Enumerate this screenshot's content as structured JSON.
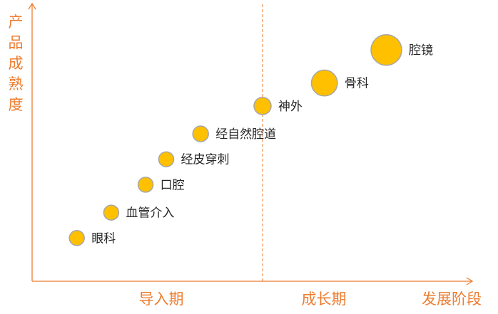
{
  "chart_data": {
    "type": "scatter",
    "title": "",
    "xlabel": "发展阶段",
    "ylabel": "产品成熟度",
    "phases": [
      "导入期",
      "成长期"
    ],
    "colors": {
      "bubble": "#FFC000",
      "bubble_border": "#A6A6A6",
      "axis": "#ED7D31",
      "label": "#262626"
    },
    "points": [
      {
        "name": "眼科",
        "x": 1.1,
        "y": 1.0,
        "size": 1
      },
      {
        "name": "血管介入",
        "x": 1.6,
        "y": 2.0,
        "size": 1
      },
      {
        "name": "口腔",
        "x": 2.1,
        "y": 3.1,
        "size": 1
      },
      {
        "name": "经皮穿刺",
        "x": 2.4,
        "y": 4.1,
        "size": 1
      },
      {
        "name": "经自然腔道",
        "x": 2.9,
        "y": 5.1,
        "size": 1.1
      },
      {
        "name": "神外",
        "x": 3.8,
        "y": 6.2,
        "size": 1.3
      },
      {
        "name": "骨科",
        "x": 4.7,
        "y": 7.1,
        "size": 3
      },
      {
        "name": "腔镜",
        "x": 5.6,
        "y": 8.4,
        "size": 4.2
      }
    ],
    "divider_x": 3.8,
    "xlim": [
      0.45,
      6.85
    ],
    "ylim": [
      -0.7,
      10.2
    ],
    "grid": false,
    "legend": "none"
  }
}
